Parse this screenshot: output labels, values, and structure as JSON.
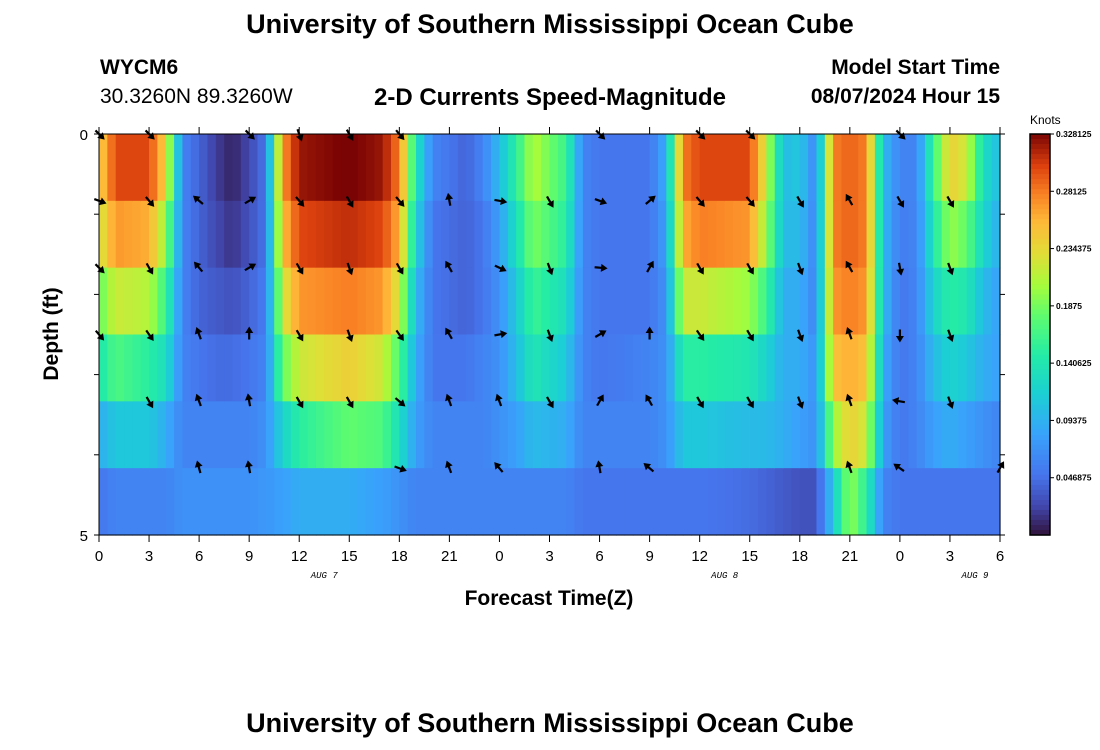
{
  "header": {
    "title": "University of Southern Mississippi Ocean Cube",
    "station_id": "WYCM6",
    "coords": "30.3260N  89.3260W",
    "plot_title": "2-D Currents Speed-Magnitude",
    "model_start_label": "Model Start Time",
    "model_start_value": "08/07/2024 Hour 15",
    "units": "Knots"
  },
  "footer": {
    "title": "University of Southern Mississippi Ocean Cube"
  },
  "chart_data": {
    "type": "heatmap",
    "title": "2-D Currents Speed-Magnitude",
    "xlabel": "Forecast Time(Z)",
    "ylabel": "Depth (ft)",
    "y_tick_labels": [
      "0",
      "5"
    ],
    "y_range": [
      0,
      5
    ],
    "x_tick_labels": [
      "0",
      "3",
      "6",
      "9",
      "12",
      "15",
      "18",
      "21",
      "0",
      "3",
      "6",
      "9",
      "12",
      "15",
      "18",
      "21",
      "0",
      "3",
      "6"
    ],
    "date_labels": [
      {
        "label": "AUG 7",
        "tick_index": 4.5
      },
      {
        "label": "AUG 8",
        "tick_index": 12.5
      },
      {
        "label": "AUG 9",
        "tick_index": 17.5
      }
    ],
    "colorbar": {
      "unit": "Knots",
      "range": [
        0,
        0.328125
      ],
      "tick_labels": [
        "0.328125",
        "0.28125",
        "0.234375",
        "0.1875",
        "0.140625",
        "0.09375",
        "0.046875"
      ],
      "tick_values": [
        0.328125,
        0.28125,
        0.234375,
        0.1875,
        0.140625,
        0.09375,
        0.046875
      ]
    },
    "depth_levels": 6,
    "speed_profiles": [
      {
        "hour": 0,
        "values": [
          0.24,
          0.22,
          0.18,
          0.14,
          0.09,
          0.05
        ]
      },
      {
        "hour": 1,
        "values": [
          0.3,
          0.27,
          0.22,
          0.17,
          0.11,
          0.06
        ]
      },
      {
        "hour": 3,
        "values": [
          0.3,
          0.26,
          0.21,
          0.15,
          0.11,
          0.06
        ]
      },
      {
        "hour": 4,
        "values": [
          0.24,
          0.2,
          0.16,
          0.13,
          0.09,
          0.06
        ]
      },
      {
        "hour": 5,
        "values": [
          0.06,
          0.06,
          0.06,
          0.06,
          0.06,
          0.07
        ]
      },
      {
        "hour": 6,
        "values": [
          0.04,
          0.04,
          0.04,
          0.05,
          0.06,
          0.07
        ]
      },
      {
        "hour": 7,
        "values": [
          0.02,
          0.025,
          0.035,
          0.045,
          0.06,
          0.07
        ]
      },
      {
        "hour": 8,
        "values": [
          0.008,
          0.015,
          0.03,
          0.045,
          0.06,
          0.07
        ]
      },
      {
        "hour": 9,
        "values": [
          0.025,
          0.03,
          0.04,
          0.05,
          0.06,
          0.07
        ]
      },
      {
        "hour": 10,
        "values": [
          0.05,
          0.05,
          0.055,
          0.06,
          0.07,
          0.075
        ]
      },
      {
        "hour": 11,
        "values": [
          0.27,
          0.25,
          0.22,
          0.18,
          0.12,
          0.08
        ]
      },
      {
        "hour": 12,
        "values": [
          0.32,
          0.3,
          0.27,
          0.22,
          0.15,
          0.09
        ]
      },
      {
        "hour": 15,
        "values": [
          0.33,
          0.31,
          0.28,
          0.24,
          0.18,
          0.09
        ]
      },
      {
        "hour": 17,
        "values": [
          0.32,
          0.3,
          0.27,
          0.22,
          0.17,
          0.08
        ]
      },
      {
        "hour": 18,
        "values": [
          0.28,
          0.26,
          0.22,
          0.17,
          0.13,
          0.07
        ]
      },
      {
        "hour": 19,
        "values": [
          0.14,
          0.12,
          0.1,
          0.09,
          0.08,
          0.06
        ]
      },
      {
        "hour": 20,
        "values": [
          0.06,
          0.05,
          0.05,
          0.05,
          0.06,
          0.06
        ]
      },
      {
        "hour": 22,
        "values": [
          0.04,
          0.04,
          0.04,
          0.05,
          0.06,
          0.06
        ]
      },
      {
        "hour": 23,
        "values": [
          0.06,
          0.05,
          0.05,
          0.06,
          0.06,
          0.06
        ]
      },
      {
        "hour": 24,
        "values": [
          0.1,
          0.08,
          0.07,
          0.07,
          0.07,
          0.06
        ]
      },
      {
        "hour": 25,
        "values": [
          0.15,
          0.13,
          0.11,
          0.1,
          0.08,
          0.06
        ]
      },
      {
        "hour": 26,
        "values": [
          0.21,
          0.19,
          0.16,
          0.14,
          0.1,
          0.06
        ]
      },
      {
        "hour": 28,
        "values": [
          0.16,
          0.15,
          0.13,
          0.11,
          0.09,
          0.06
        ]
      },
      {
        "hour": 29,
        "values": [
          0.06,
          0.06,
          0.06,
          0.06,
          0.06,
          0.05
        ]
      },
      {
        "hour": 30,
        "values": [
          0.05,
          0.05,
          0.05,
          0.05,
          0.06,
          0.05
        ]
      },
      {
        "hour": 33,
        "values": [
          0.05,
          0.05,
          0.05,
          0.06,
          0.06,
          0.05
        ]
      },
      {
        "hour": 34,
        "values": [
          0.09,
          0.08,
          0.07,
          0.07,
          0.07,
          0.05
        ]
      },
      {
        "hour": 35,
        "values": [
          0.28,
          0.26,
          0.22,
          0.15,
          0.11,
          0.05
        ]
      },
      {
        "hour": 36,
        "values": [
          0.3,
          0.28,
          0.22,
          0.15,
          0.11,
          0.05
        ]
      },
      {
        "hour": 39,
        "values": [
          0.3,
          0.27,
          0.2,
          0.14,
          0.1,
          0.045
        ]
      },
      {
        "hour": 40,
        "values": [
          0.22,
          0.2,
          0.16,
          0.12,
          0.1,
          0.04
        ]
      },
      {
        "hour": 41,
        "values": [
          0.1,
          0.1,
          0.09,
          0.09,
          0.09,
          0.035
        ]
      },
      {
        "hour": 42,
        "values": [
          0.11,
          0.1,
          0.09,
          0.09,
          0.08,
          0.03
        ]
      },
      {
        "hour": 43,
        "values": [
          0.06,
          0.06,
          0.06,
          0.07,
          0.07,
          0.03
        ]
      },
      {
        "hour": 44,
        "values": [
          0.28,
          0.28,
          0.27,
          0.25,
          0.2,
          0.11
        ]
      },
      {
        "hour": 45,
        "values": [
          0.29,
          0.29,
          0.28,
          0.26,
          0.24,
          0.2
        ]
      },
      {
        "hour": 46,
        "values": [
          0.28,
          0.28,
          0.27,
          0.25,
          0.22,
          0.15
        ]
      },
      {
        "hour": 47,
        "values": [
          0.1,
          0.1,
          0.1,
          0.09,
          0.08,
          0.06
        ]
      },
      {
        "hour": 48,
        "values": [
          0.06,
          0.055,
          0.05,
          0.05,
          0.05,
          0.05
        ]
      },
      {
        "hour": 49,
        "values": [
          0.06,
          0.06,
          0.06,
          0.06,
          0.06,
          0.05
        ]
      },
      {
        "hour": 50,
        "values": [
          0.16,
          0.14,
          0.12,
          0.1,
          0.08,
          0.05
        ]
      },
      {
        "hour": 51,
        "values": [
          0.24,
          0.2,
          0.15,
          0.12,
          0.09,
          0.05
        ]
      },
      {
        "hour": 52,
        "values": [
          0.22,
          0.18,
          0.14,
          0.11,
          0.08,
          0.05
        ]
      },
      {
        "hour": 53,
        "values": [
          0.13,
          0.12,
          0.1,
          0.09,
          0.07,
          0.05
        ]
      },
      {
        "hour": 54,
        "values": [
          0.1,
          0.09,
          0.08,
          0.08,
          0.06,
          0.05
        ]
      }
    ],
    "arrow_levels": [
      0,
      1,
      2,
      3,
      4,
      5
    ],
    "arrows": [
      {
        "hour": 0,
        "dirs": [
          135,
          110,
          135,
          140,
          null,
          null
        ]
      },
      {
        "hour": 3,
        "dirs": [
          135,
          140,
          150,
          145,
          150,
          null
        ]
      },
      {
        "hour": 6,
        "dirs": [
          null,
          310,
          320,
          340,
          340,
          345
        ]
      },
      {
        "hour": 9,
        "dirs": [
          135,
          60,
          60,
          0,
          350,
          350
        ]
      },
      {
        "hour": 12,
        "dirs": [
          160,
          140,
          150,
          150,
          150,
          null
        ]
      },
      {
        "hour": 15,
        "dirs": [
          150,
          150,
          160,
          160,
          150,
          null
        ]
      },
      {
        "hour": 18,
        "dirs": [
          140,
          140,
          150,
          145,
          130,
          110
        ]
      },
      {
        "hour": 21,
        "dirs": [
          null,
          350,
          330,
          330,
          340,
          340
        ]
      },
      {
        "hour": 24,
        "dirs": [
          null,
          100,
          115,
          80,
          340,
          320
        ]
      },
      {
        "hour": 27,
        "dirs": [
          null,
          150,
          160,
          160,
          150,
          null
        ]
      },
      {
        "hour": 30,
        "dirs": [
          135,
          110,
          95,
          60,
          30,
          350
        ]
      },
      {
        "hour": 33,
        "dirs": [
          null,
          50,
          30,
          0,
          330,
          310
        ]
      },
      {
        "hour": 36,
        "dirs": [
          135,
          140,
          150,
          145,
          150,
          null
        ]
      },
      {
        "hour": 39,
        "dirs": [
          135,
          140,
          150,
          150,
          150,
          null
        ]
      },
      {
        "hour": 42,
        "dirs": [
          null,
          150,
          160,
          160,
          160,
          null
        ]
      },
      {
        "hour": 45,
        "dirs": [
          null,
          330,
          330,
          340,
          340,
          340
        ]
      },
      {
        "hour": 48,
        "dirs": [
          135,
          150,
          170,
          180,
          280,
          305
        ]
      },
      {
        "hour": 51,
        "dirs": [
          null,
          150,
          160,
          160,
          160,
          null
        ]
      },
      {
        "hour": 54,
        "dirs": [
          null,
          null,
          null,
          null,
          null,
          30
        ]
      }
    ]
  }
}
